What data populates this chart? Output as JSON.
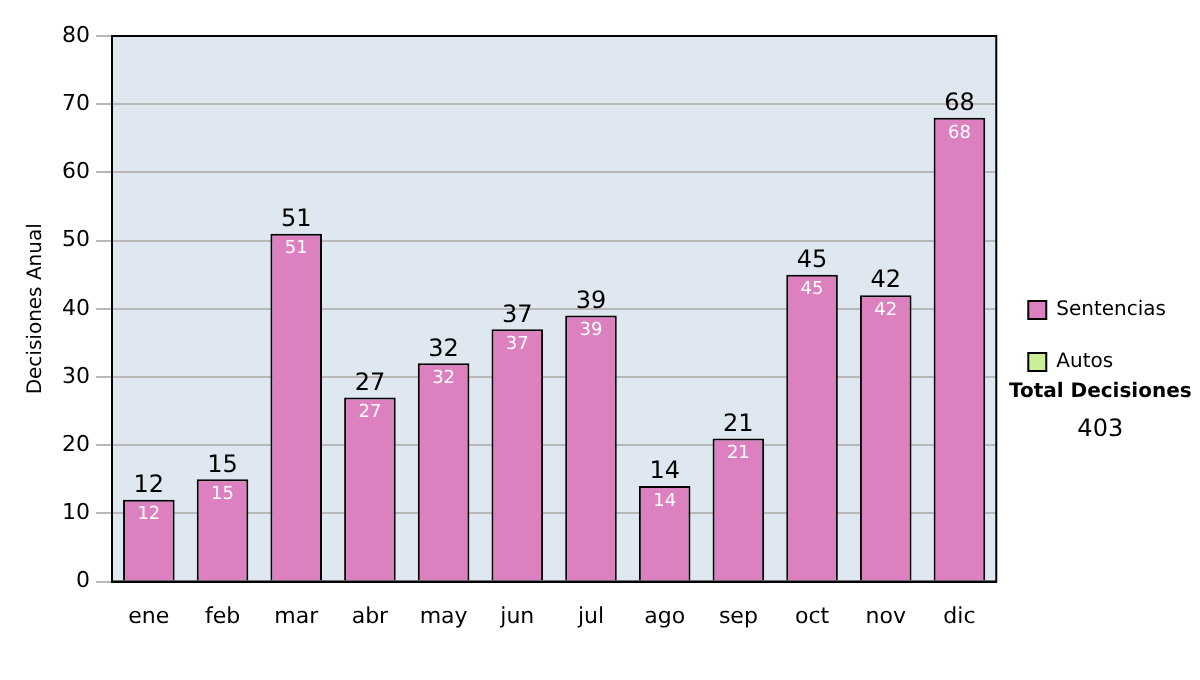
{
  "chart_data": {
    "type": "bar",
    "ylabel": "Decisiones Anual",
    "categories": [
      "ene",
      "feb",
      "mar",
      "abr",
      "may",
      "jun",
      "jul",
      "ago",
      "sep",
      "oct",
      "nov",
      "dic"
    ],
    "series": [
      {
        "name": "Sentencias",
        "color": "#dd80c0",
        "values": [
          12,
          15,
          51,
          27,
          32,
          37,
          39,
          14,
          21,
          45,
          42,
          68
        ]
      },
      {
        "name": "Autos",
        "color": "#ccee99",
        "values": [
          null,
          null,
          null,
          null,
          null,
          null,
          null,
          null,
          null,
          null,
          null,
          null
        ]
      }
    ],
    "stacked": true,
    "ylim": [
      0,
      80
    ],
    "yticks": [
      0,
      10,
      20,
      30,
      40,
      50,
      60,
      70,
      80
    ],
    "grid": "y",
    "legend": "right",
    "data_labels": true,
    "totals": [
      "12",
      "15",
      "51",
      "27",
      "32",
      "37",
      "39",
      "14",
      "21",
      "45",
      "42",
      "68"
    ],
    "annotations": [
      "Total Decisiones",
      "403"
    ]
  }
}
